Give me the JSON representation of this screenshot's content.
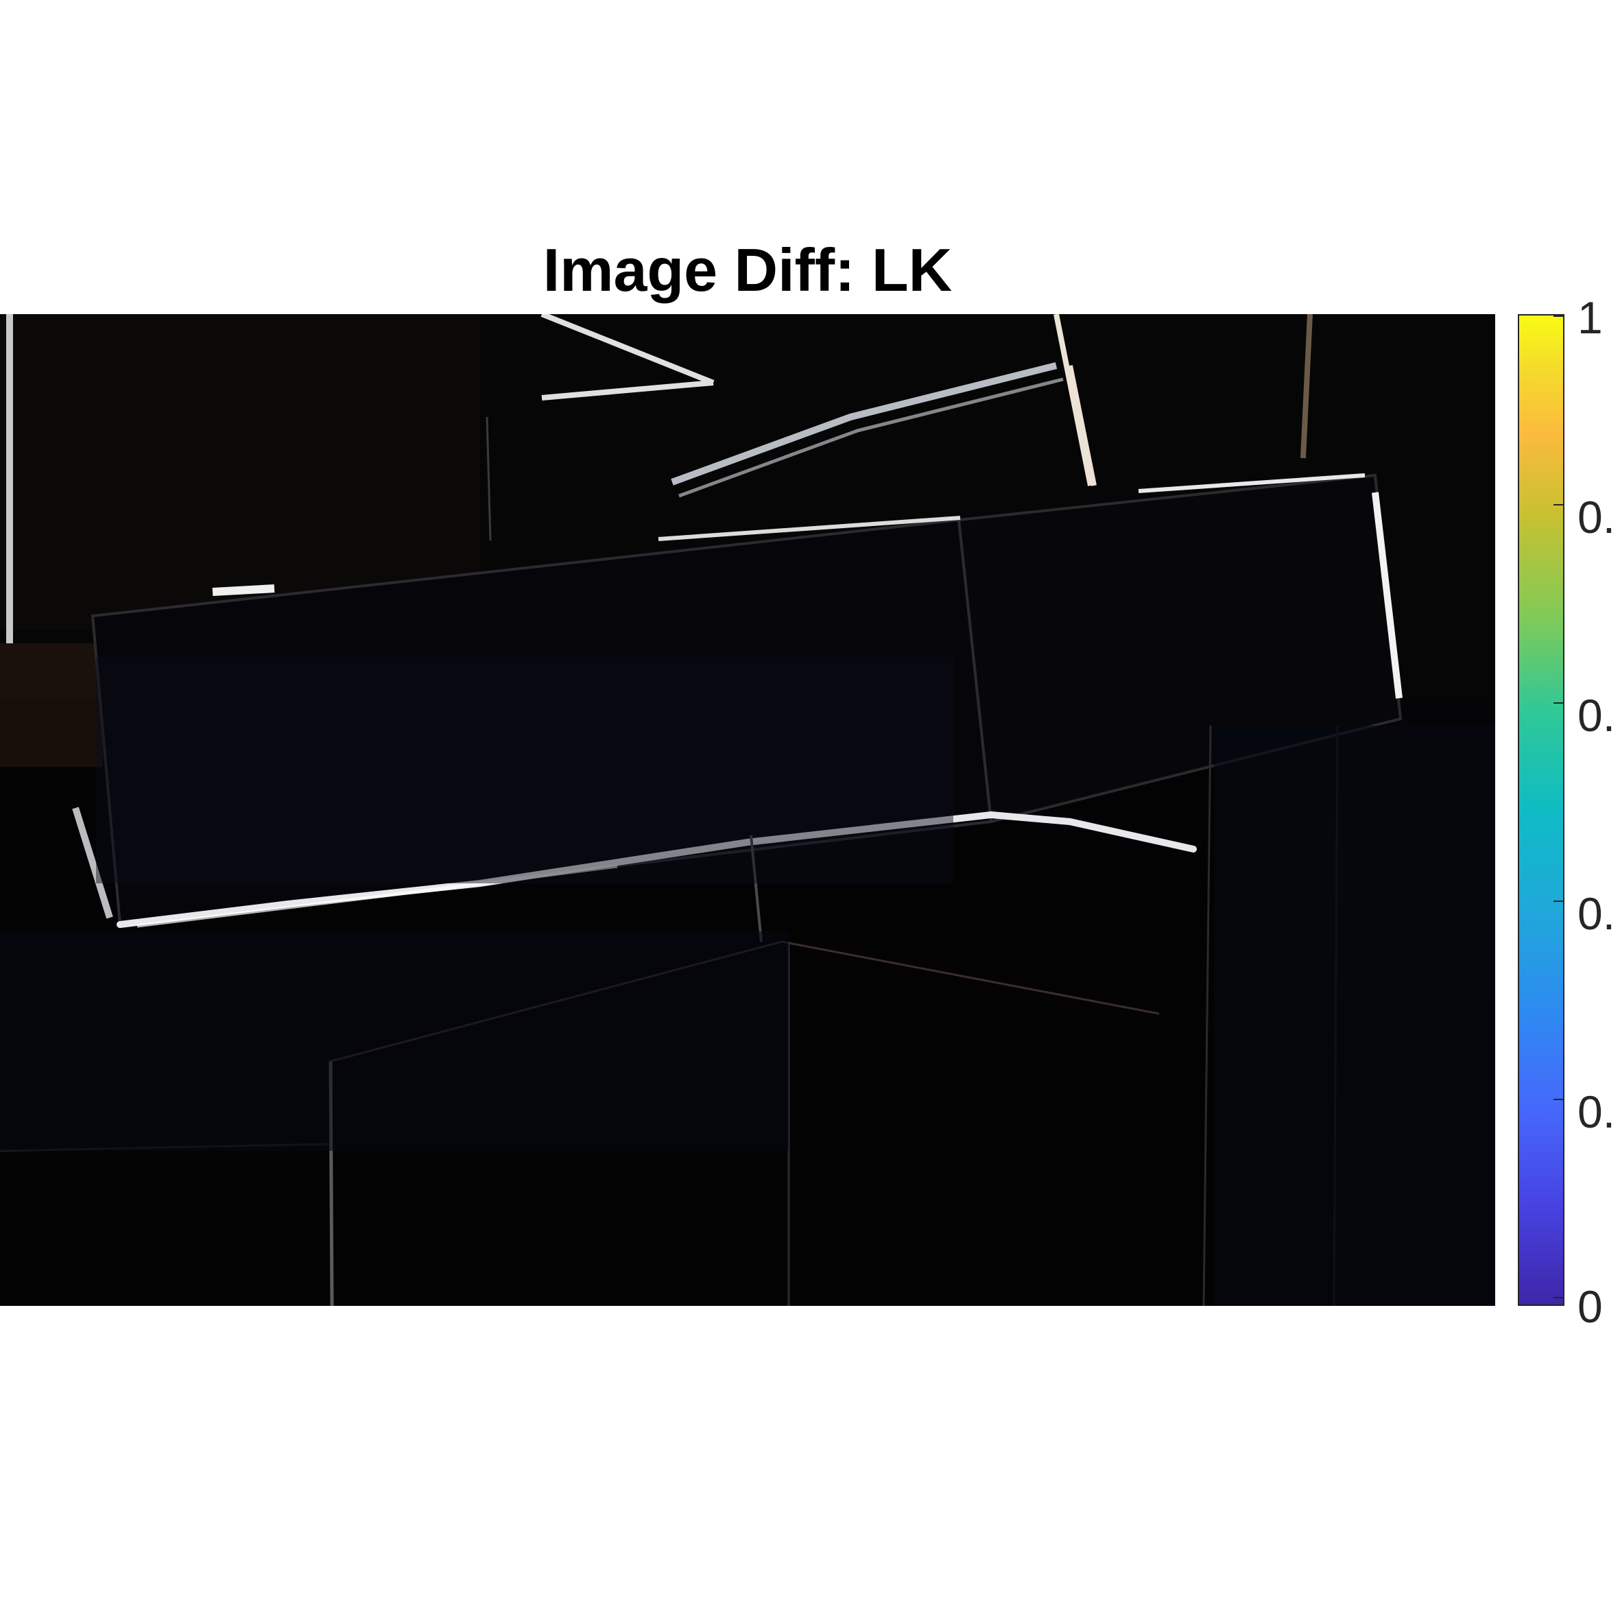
{
  "figure": {
    "title": "Image Diff: LK",
    "colorbar": {
      "colormap": "parula",
      "range": [
        0,
        1
      ],
      "tick_labels": [
        "0",
        "0.",
        "0.",
        "0.",
        "0.",
        "1"
      ]
    }
  },
  "colors": {
    "background": "#ffffff",
    "image_background": "#000000",
    "text": "#000000",
    "axis": "#262626"
  }
}
